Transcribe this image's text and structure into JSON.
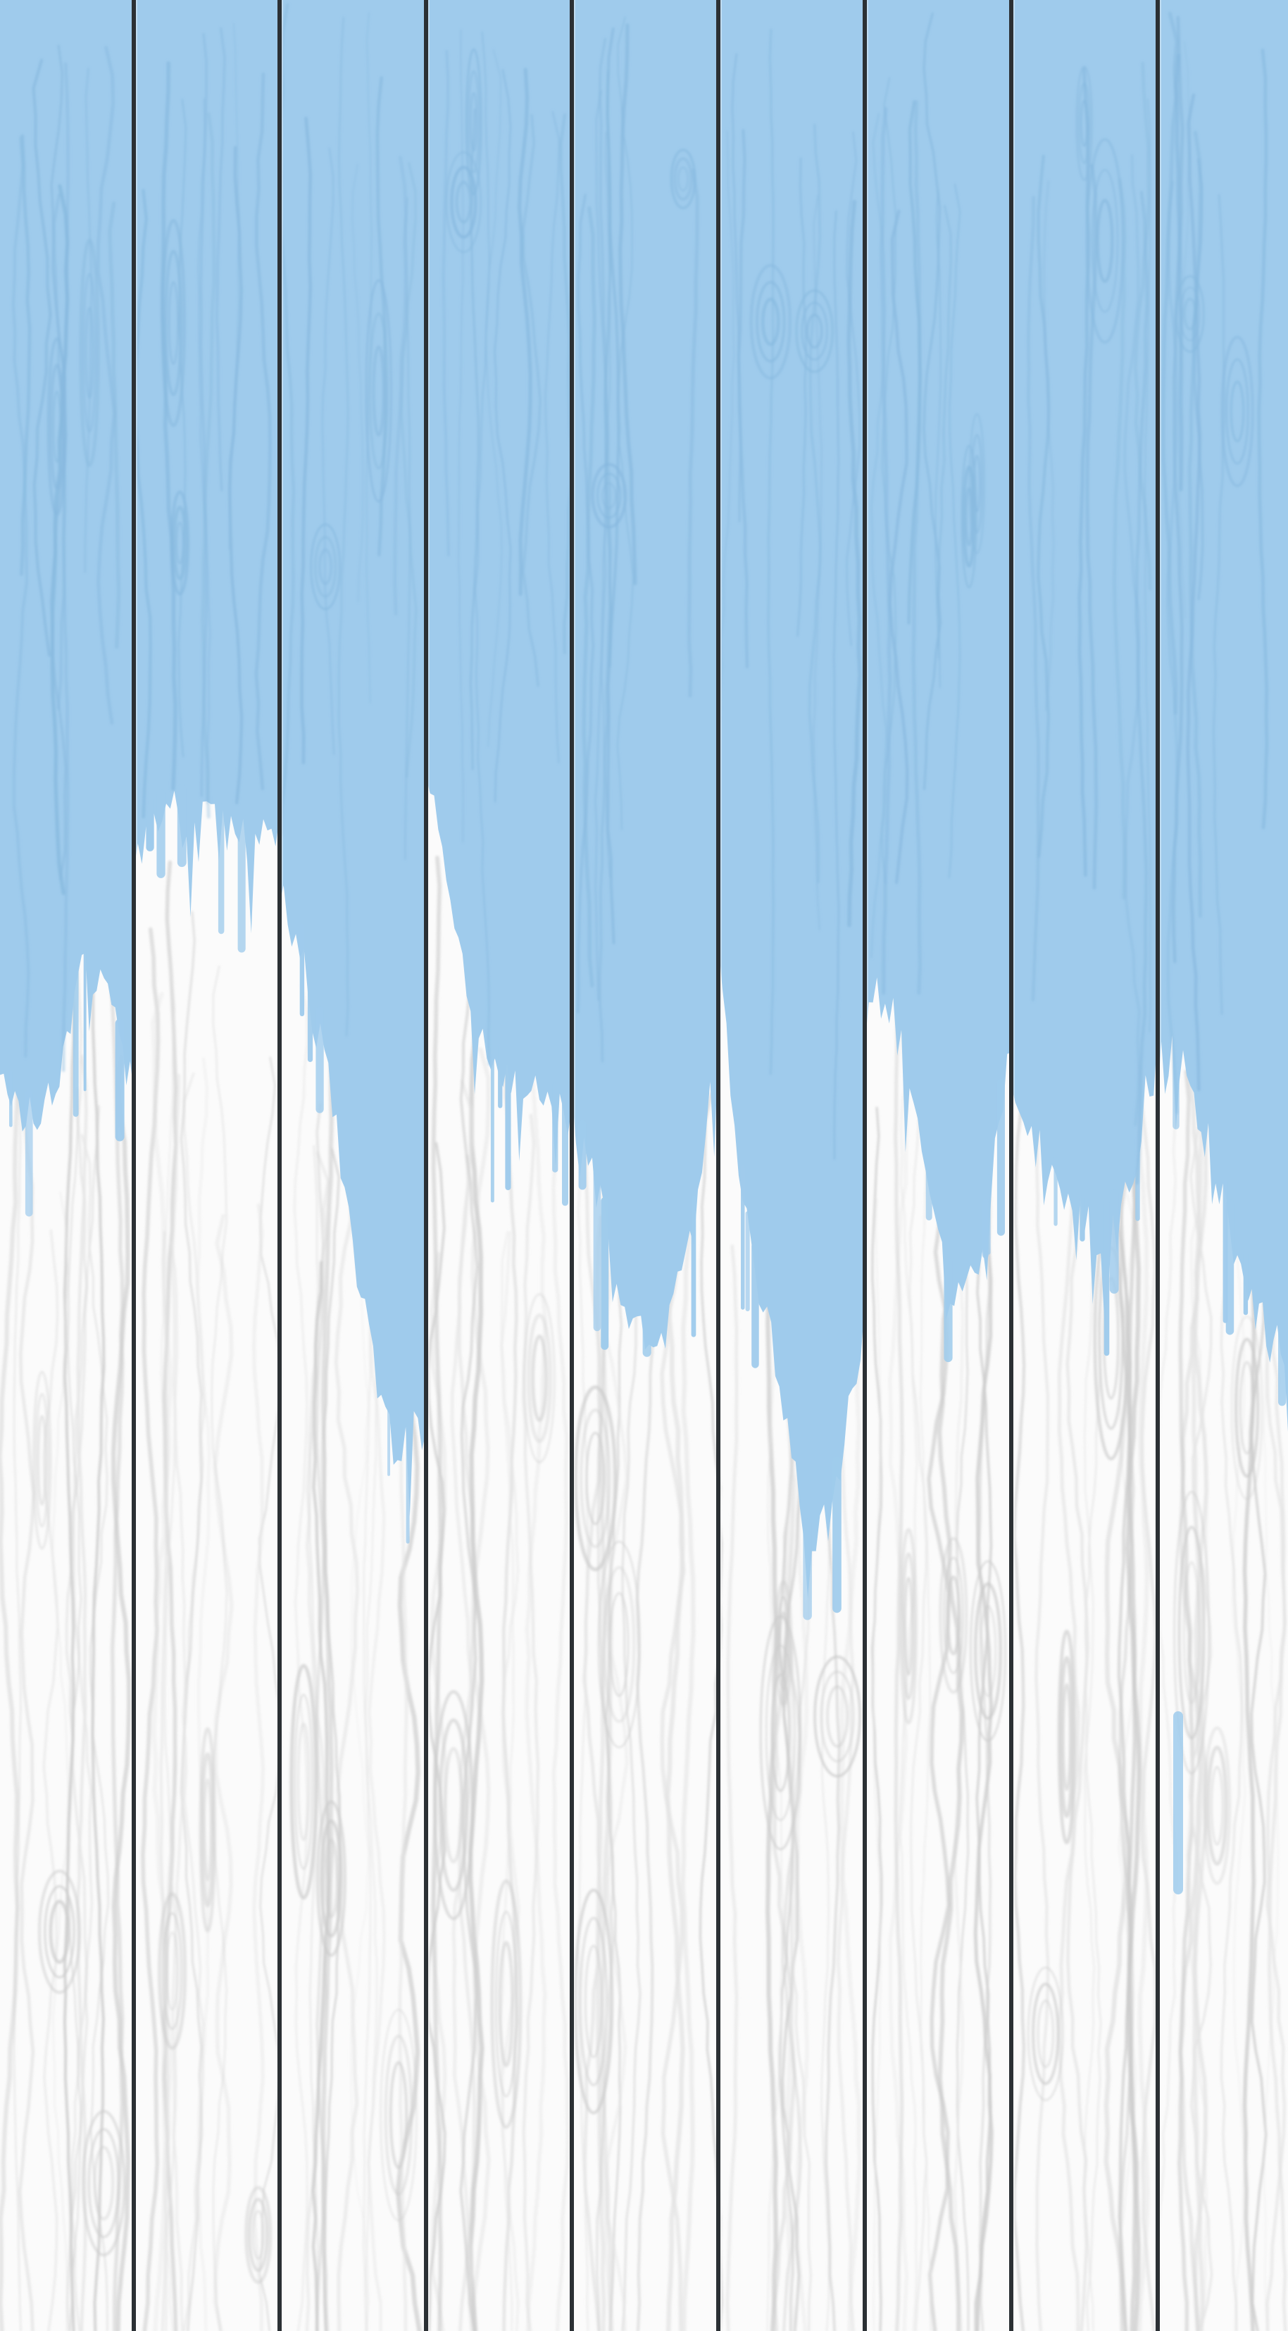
{
  "scene": {
    "kind": "painted-wood-planks",
    "plank_count": 9,
    "orientation": "vertical",
    "colors": {
      "paint_blue": "#9fcbec",
      "paint_blue_dark": "#86b8de",
      "wood_white": "#fbfbfb",
      "wood_grain_gray": "#c9c9c9",
      "wood_grain_light": "#e3e3e3",
      "plank_seam": "#2b3034"
    }
  }
}
